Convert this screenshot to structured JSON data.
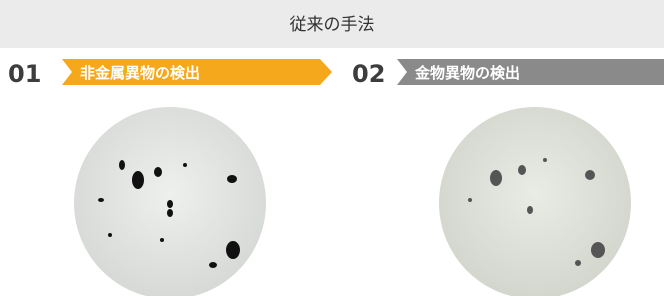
{
  "header": {
    "title": "従来の手法"
  },
  "items": [
    {
      "number": "01",
      "label": "非金属異物の検出"
    },
    {
      "number": "02",
      "label": "金物異物の検出"
    }
  ]
}
